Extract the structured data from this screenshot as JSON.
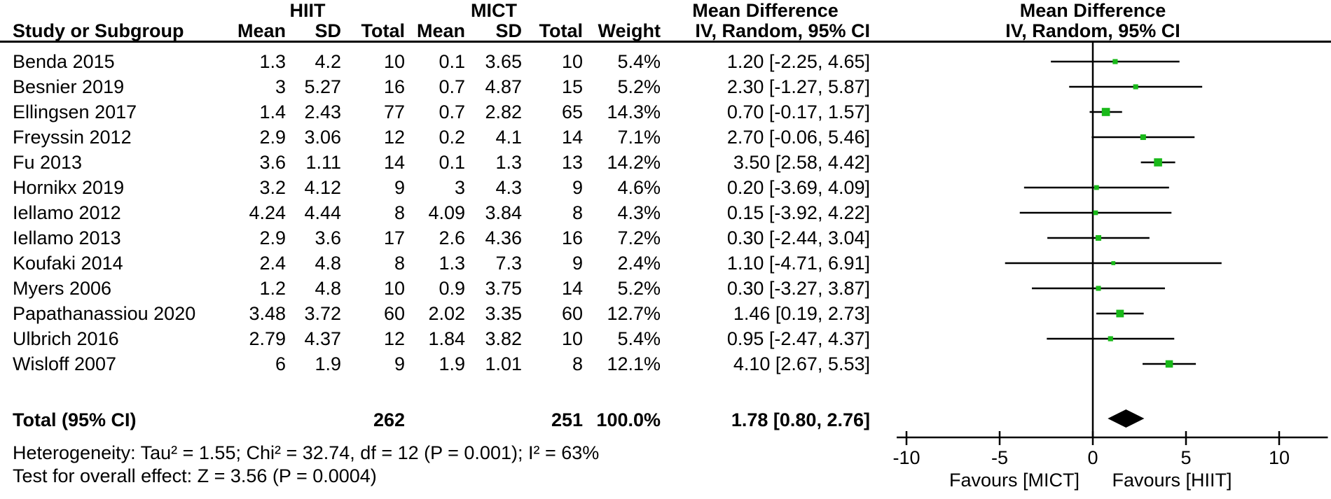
{
  "header": {
    "group1": "HIIT",
    "group2": "MICT",
    "study": "Study or Subgroup",
    "mean": "Mean",
    "sd": "SD",
    "total": "Total",
    "weight": "Weight",
    "md": "Mean Difference",
    "method": "IV, Random, 95% CI"
  },
  "chart_data": {
    "type": "forest",
    "title": "Mean Difference, IV, Random, 95% CI",
    "x_axis": {
      "ticks": [
        -10,
        -5,
        0,
        5,
        10
      ],
      "min": -10.6,
      "max": 12.8,
      "zero_line": 0
    },
    "favours_left": "Favours [MICT]",
    "favours_right": "Favours [HIIT]",
    "marker_color": "#19B919",
    "line_color": "#000000",
    "studies": [
      {
        "study": "Benda 2015",
        "mean1": "1.3",
        "sd1": "4.2",
        "n1": "10",
        "mean2": "0.1",
        "sd2": "3.65",
        "n2": "10",
        "weight": "5.4%",
        "est": 1.2,
        "lo": -2.25,
        "hi": 4.65,
        "ci_label": "1.20 [-2.25, 4.65]"
      },
      {
        "study": "Besnier 2019",
        "mean1": "3",
        "sd1": "5.27",
        "n1": "16",
        "mean2": "0.7",
        "sd2": "4.87",
        "n2": "15",
        "weight": "5.2%",
        "est": 2.3,
        "lo": -1.27,
        "hi": 5.87,
        "ci_label": "2.30 [-1.27, 5.87]"
      },
      {
        "study": "Ellingsen 2017",
        "mean1": "1.4",
        "sd1": "2.43",
        "n1": "77",
        "mean2": "0.7",
        "sd2": "2.82",
        "n2": "65",
        "weight": "14.3%",
        "est": 0.7,
        "lo": -0.17,
        "hi": 1.57,
        "ci_label": "0.70 [-0.17, 1.57]"
      },
      {
        "study": "Freyssin 2012",
        "mean1": "2.9",
        "sd1": "3.06",
        "n1": "12",
        "mean2": "0.2",
        "sd2": "4.1",
        "n2": "14",
        "weight": "7.1%",
        "est": 2.7,
        "lo": -0.06,
        "hi": 5.46,
        "ci_label": "2.70 [-0.06, 5.46]"
      },
      {
        "study": "Fu 2013",
        "mean1": "3.6",
        "sd1": "1.11",
        "n1": "14",
        "mean2": "0.1",
        "sd2": "1.3",
        "n2": "13",
        "weight": "14.2%",
        "est": 3.5,
        "lo": 2.58,
        "hi": 4.42,
        "ci_label": "3.50 [2.58, 4.42]"
      },
      {
        "study": "Hornikx 2019",
        "mean1": "3.2",
        "sd1": "4.12",
        "n1": "9",
        "mean2": "3",
        "sd2": "4.3",
        "n2": "9",
        "weight": "4.6%",
        "est": 0.2,
        "lo": -3.69,
        "hi": 4.09,
        "ci_label": "0.20 [-3.69, 4.09]"
      },
      {
        "study": "Iellamo 2012",
        "mean1": "4.24",
        "sd1": "4.44",
        "n1": "8",
        "mean2": "4.09",
        "sd2": "3.84",
        "n2": "8",
        "weight": "4.3%",
        "est": 0.15,
        "lo": -3.92,
        "hi": 4.22,
        "ci_label": "0.15 [-3.92, 4.22]"
      },
      {
        "study": "Iellamo 2013",
        "mean1": "2.9",
        "sd1": "3.6",
        "n1": "17",
        "mean2": "2.6",
        "sd2": "4.36",
        "n2": "16",
        "weight": "7.2%",
        "est": 0.3,
        "lo": -2.44,
        "hi": 3.04,
        "ci_label": "0.30 [-2.44, 3.04]"
      },
      {
        "study": "Koufaki 2014",
        "mean1": "2.4",
        "sd1": "4.8",
        "n1": "8",
        "mean2": "1.3",
        "sd2": "7.3",
        "n2": "9",
        "weight": "2.4%",
        "est": 1.1,
        "lo": -4.71,
        "hi": 6.91,
        "ci_label": "1.10 [-4.71, 6.91]"
      },
      {
        "study": "Myers 2006",
        "mean1": "1.2",
        "sd1": "4.8",
        "n1": "10",
        "mean2": "0.9",
        "sd2": "3.75",
        "n2": "14",
        "weight": "5.2%",
        "est": 0.3,
        "lo": -3.27,
        "hi": 3.87,
        "ci_label": "0.30 [-3.27, 3.87]"
      },
      {
        "study": "Papathanassiou 2020",
        "mean1": "3.48",
        "sd1": "3.72",
        "n1": "60",
        "mean2": "2.02",
        "sd2": "3.35",
        "n2": "60",
        "weight": "12.7%",
        "est": 1.46,
        "lo": 0.19,
        "hi": 2.73,
        "ci_label": "1.46 [0.19, 2.73]"
      },
      {
        "study": "Ulbrich 2016",
        "mean1": "2.79",
        "sd1": "4.37",
        "n1": "12",
        "mean2": "1.84",
        "sd2": "3.82",
        "n2": "10",
        "weight": "5.4%",
        "est": 0.95,
        "lo": -2.47,
        "hi": 4.37,
        "ci_label": "0.95 [-2.47, 4.37]"
      },
      {
        "study": "Wisloff 2007",
        "mean1": "6",
        "sd1": "1.9",
        "n1": "9",
        "mean2": "1.9",
        "sd2": "1.01",
        "n2": "8",
        "weight": "12.1%",
        "est": 4.1,
        "lo": 2.67,
        "hi": 5.53,
        "ci_label": "4.10 [2.67, 5.53]"
      }
    ],
    "total": {
      "label": "Total (95% CI)",
      "n1": "262",
      "n2": "251",
      "weight": "100.0%",
      "est": 1.78,
      "lo": 0.8,
      "hi": 2.76,
      "ci_label": "1.78 [0.80, 2.76]"
    },
    "heterogeneity": "Heterogeneity: Tau² = 1.55; Chi² = 32.74, df = 12 (P = 0.001); I² = 63%",
    "overall_effect": "Test for overall effect: Z = 3.56 (P = 0.0004)"
  }
}
